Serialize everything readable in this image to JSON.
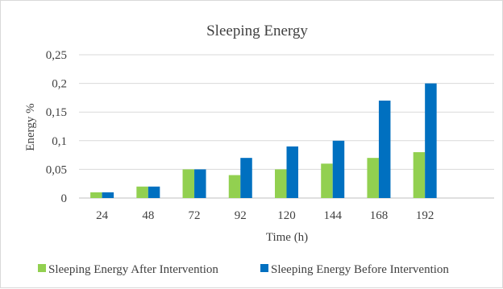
{
  "chart_data": {
    "type": "bar",
    "title": "Sleeping Energy",
    "xlabel": "Time (h)",
    "ylabel": "Energy %",
    "categories": [
      "24",
      "48",
      "72",
      "92",
      "120",
      "144",
      "168",
      "192"
    ],
    "series": [
      {
        "name": "Sleeping Energy After Intervention",
        "color": "#92d050",
        "values": [
          0.01,
          0.02,
          0.05,
          0.04,
          0.05,
          0.06,
          0.07,
          0.08
        ]
      },
      {
        "name": "Sleeping Energy Before Intervention",
        "color": "#0070c0",
        "values": [
          0.01,
          0.02,
          0.05,
          0.07,
          0.09,
          0.1,
          0.17,
          0.2
        ]
      }
    ],
    "ylim": [
      0,
      0.25
    ],
    "yticks": [
      0,
      0.05,
      0.1,
      0.15,
      0.2,
      0.25
    ],
    "ytick_labels": [
      "0",
      "0,05",
      "0,1",
      "0,15",
      "0,2",
      "0,25"
    ],
    "grid": true,
    "legend_position": "bottom"
  }
}
